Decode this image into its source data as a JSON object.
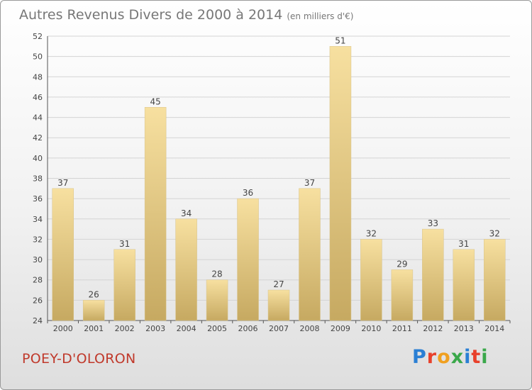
{
  "title": {
    "main": "Autres Revenus Divers de 2000 à 2014",
    "sub": "(en milliers d'€)"
  },
  "town": "POEY-D'OLORON",
  "logo": {
    "text": "Proxiti",
    "colors": [
      "#2a7fd4",
      "#e8412c",
      "#f0a020",
      "#3aa84a",
      "#2a7fd4",
      "#e8412c",
      "#3aa84a"
    ]
  },
  "colors": {
    "bar_top": "#f7e0a0",
    "bar_bottom": "#c6a961",
    "grid": "#d4d4d4",
    "axis": "#555555"
  },
  "chart_data": {
    "type": "bar",
    "categories": [
      "2000",
      "2001",
      "2002",
      "2003",
      "2004",
      "2005",
      "2006",
      "2007",
      "2008",
      "2009",
      "2010",
      "2011",
      "2012",
      "2013",
      "2014"
    ],
    "values": [
      37,
      26,
      31,
      45,
      34,
      28,
      36,
      27,
      37,
      51,
      32,
      29,
      33,
      31,
      32
    ],
    "title": "Autres Revenus Divers de 2000 à 2014",
    "subtitle": "(en milliers d'€)",
    "ylim": [
      24,
      52
    ],
    "yticks": [
      24,
      26,
      28,
      30,
      32,
      34,
      36,
      38,
      40,
      42,
      44,
      46,
      48,
      50,
      52
    ],
    "grid": true,
    "data_labels": true
  }
}
